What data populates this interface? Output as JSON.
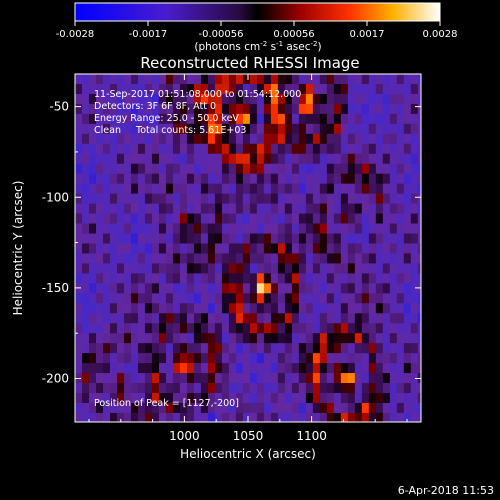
{
  "chart_data": {
    "type": "heatmap",
    "title": "Reconstructed RHESSI Image",
    "xlabel": "Heliocentric X (arcsec)",
    "ylabel": "Heliocentric Y (arcsec)",
    "xlim": [
      914,
      1186
    ],
    "ylim": [
      -224,
      -32
    ],
    "x_ticks": [
      1000,
      1050,
      1100
    ],
    "y_ticks": [
      -50,
      -100,
      -150,
      -200
    ],
    "colorbar": {
      "range": [
        -0.0028,
        0.0028
      ],
      "ticks": [
        "-0.0028",
        "-0.0017",
        "-0.00056",
        "0.00056",
        "0.0017",
        "0.0028"
      ],
      "unit_label_parts": [
        "(photons cm",
        "-2",
        " s",
        "-1",
        " asec",
        "-2",
        ")"
      ],
      "colormap": "blue-black-red-yellow-white"
    },
    "annotations": [
      "11-Sep-2017 01:51:08.000 to 01:54:12.000",
      "Detectors: 3F 6F 8F, Att 0",
      "Energy Range: 25.0 - 50.0 keV",
      "Clean     Total counts: 5.61E+03"
    ],
    "peak_label": "Position of Peak = [1127,-200]",
    "sources": [
      {
        "x": 1047,
        "y": -55,
        "intensity": 1.0
      },
      {
        "x": 1097,
        "y": -47,
        "intensity": 0.75
      },
      {
        "x": 1012,
        "y": -42,
        "intensity": 0.55
      },
      {
        "x": 1062,
        "y": -150,
        "intensity": 0.95
      },
      {
        "x": 1127,
        "y": -200,
        "intensity": 1.0
      },
      {
        "x": 1000,
        "y": -192,
        "intensity": 0.7
      },
      {
        "x": 1130,
        "y": -110,
        "intensity": 0.5
      },
      {
        "x": 1003,
        "y": -115,
        "intensity": 0.4
      },
      {
        "x": 950,
        "y": -205,
        "intensity": 0.45
      }
    ],
    "footer_date": "6-Apr-2018 11:53"
  }
}
